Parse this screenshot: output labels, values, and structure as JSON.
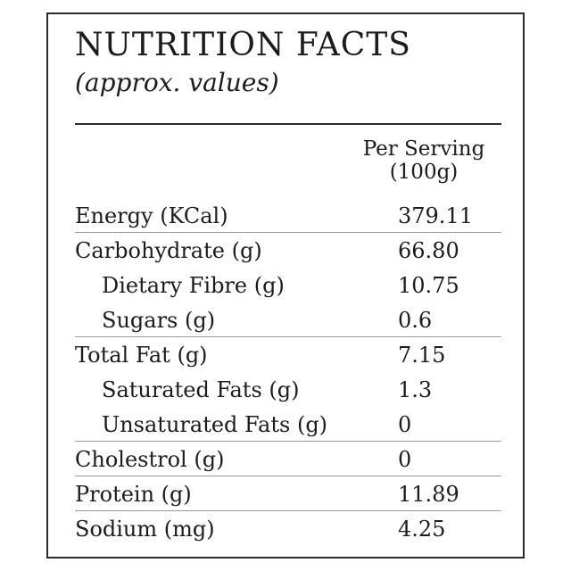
{
  "title": "NUTRITION FACTS",
  "subtitle": "(approx. values)",
  "column_header": {
    "line1": "Per Serving",
    "line2": "(100g)"
  },
  "rows": [
    {
      "label": "Energy (KCal)",
      "value": "379.11"
    },
    {
      "label": "Carbohydrate (g)",
      "value": "66.80"
    },
    {
      "label": "Dietary Fibre (g)",
      "value": "10.75"
    },
    {
      "label": "Sugars (g)",
      "value": "0.6"
    },
    {
      "label": "Total Fat (g)",
      "value": "7.15"
    },
    {
      "label": "Saturated Fats (g)",
      "value": "1.3"
    },
    {
      "label": "Unsaturated Fats (g)",
      "value": "0"
    },
    {
      "label": "Cholestrol (g)",
      "value": "0"
    },
    {
      "label": "Protein (g)",
      "value": "11.89"
    },
    {
      "label": "Sodium (mg)",
      "value": "4.25"
    }
  ]
}
